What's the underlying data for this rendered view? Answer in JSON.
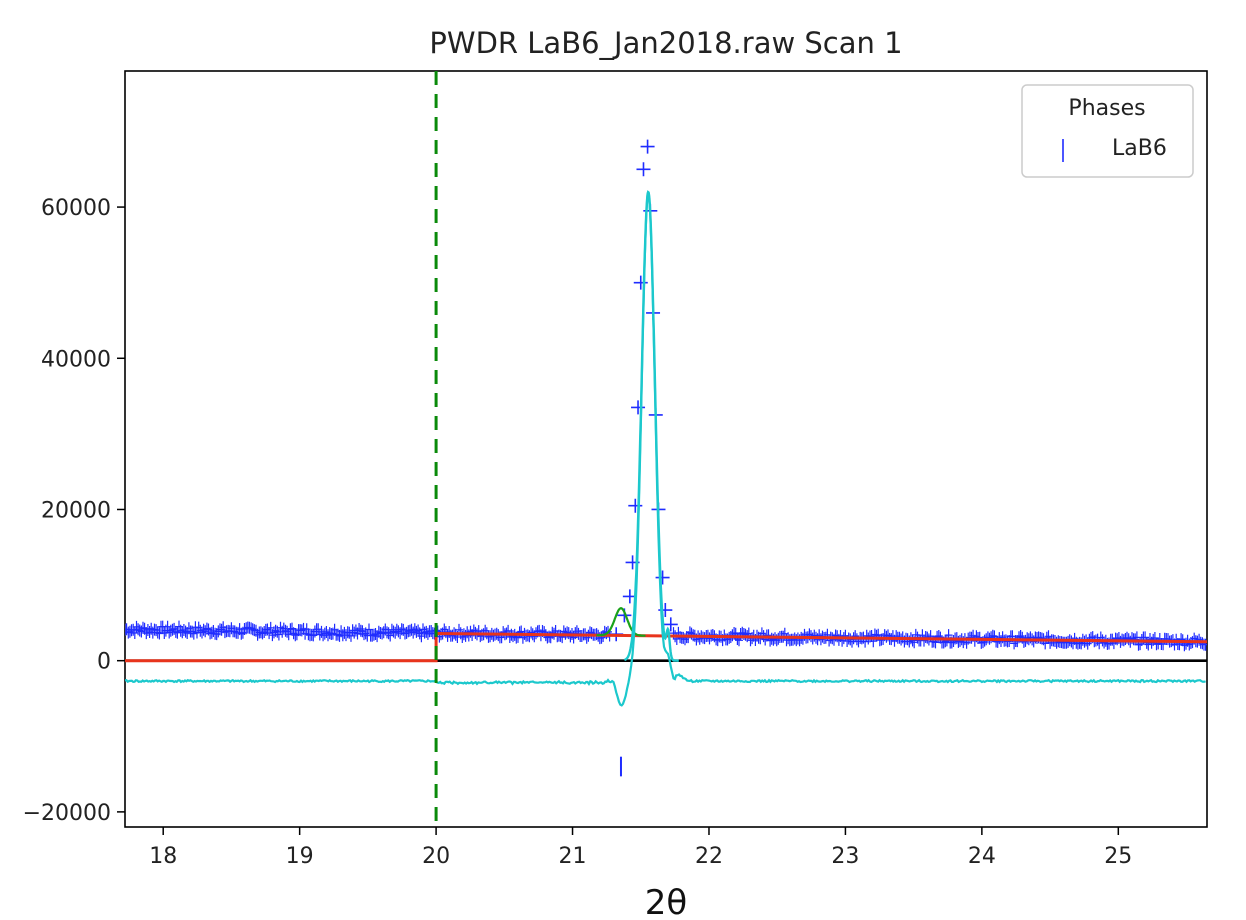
{
  "chart_data": {
    "type": "line",
    "title": "PWDR LaB6_Jan2018.raw Scan 1",
    "xlabel": "2θ",
    "ylabel": "",
    "xlim": [
      17.72,
      25.65
    ],
    "ylim": [
      -22000,
      78000
    ],
    "xticks": [
      18,
      19,
      20,
      21,
      22,
      23,
      24,
      25
    ],
    "yticks": [
      -20000,
      0,
      20000,
      40000,
      60000
    ],
    "grid": false,
    "legend": {
      "title": "Phases",
      "placement": "top-right",
      "entries": [
        {
          "name": "LaB6",
          "marker": "|",
          "color": "#1f2cff"
        }
      ]
    },
    "colors": {
      "observed": "#1f2cff",
      "calculated": "#1aa21a",
      "background": "#e8341c",
      "difference": "#1cc8cc",
      "zero_line": "#000000",
      "limit_line": "#0a8a0a",
      "reflection_tick": "#1f2cff"
    },
    "observed_peak_points": [
      {
        "x": 21.32,
        "y": 3500
      },
      {
        "x": 21.38,
        "y": 6000
      },
      {
        "x": 21.42,
        "y": 8500
      },
      {
        "x": 21.44,
        "y": 13000
      },
      {
        "x": 21.46,
        "y": 20500
      },
      {
        "x": 21.48,
        "y": 33500
      },
      {
        "x": 21.5,
        "y": 50000
      },
      {
        "x": 21.52,
        "y": 65000
      },
      {
        "x": 21.55,
        "y": 68000
      },
      {
        "x": 21.57,
        "y": 59500
      },
      {
        "x": 21.59,
        "y": 46000
      },
      {
        "x": 21.61,
        "y": 32500
      },
      {
        "x": 21.63,
        "y": 20000
      },
      {
        "x": 21.66,
        "y": 11000
      },
      {
        "x": 21.68,
        "y": 6700
      },
      {
        "x": 21.72,
        "y": 4800
      }
    ],
    "observed_baseline": {
      "x_start": 17.72,
      "x_end": 25.65,
      "y_start": 4100,
      "y_end": 2500,
      "noise": 500
    },
    "calculated_peaks": [
      {
        "center": 21.355,
        "height": 7200,
        "width": 0.045
      },
      {
        "center": 21.555,
        "height": 62000,
        "width": 0.048
      }
    ],
    "background": {
      "x_start": 20.0,
      "x_end": 25.65,
      "y_start": 3600,
      "y_end": 2500
    },
    "difference_offset": -2700,
    "difference_features": [
      {
        "x": 21.355,
        "y": -6000
      },
      {
        "x": 21.555,
        "y": 62000
      },
      {
        "x": 21.7,
        "y": 7500
      }
    ],
    "limit_x": 20.0,
    "reflection_ticks": [
      {
        "x": 21.355,
        "y_top": -12700,
        "y_bottom": -15300
      }
    ]
  }
}
